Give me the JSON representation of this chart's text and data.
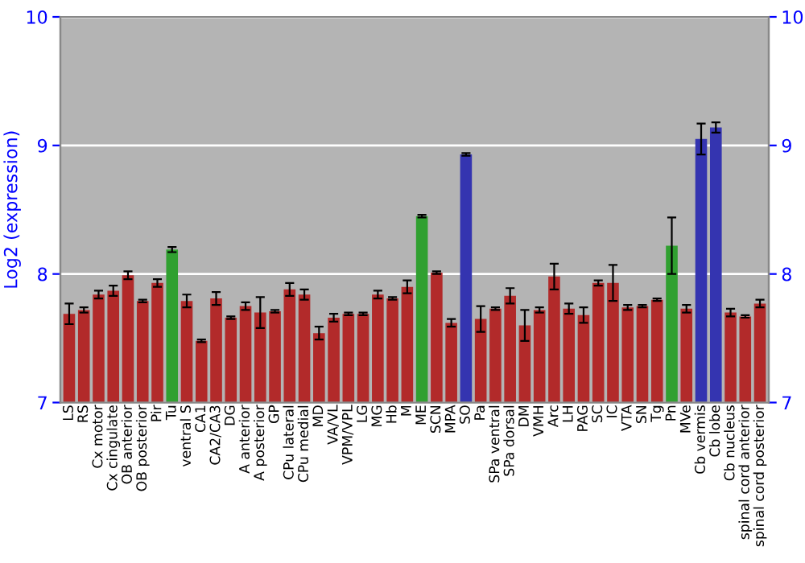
{
  "chart_data": {
    "type": "bar",
    "ylabel": "Log2 (expression)",
    "categories": [
      "LS",
      "RS",
      "Cx motor",
      "Cx cingulate",
      "OB anterior",
      "OB posterior",
      "Pir",
      "Tu",
      "ventral S",
      "CA1",
      "CA2/CA3",
      "DG",
      "A anterior",
      "A posterior",
      "GP",
      "CPu lateral",
      "CPu medial",
      "MD",
      "VA/VL",
      "VPM/VPL",
      "LG",
      "MG",
      "Hb",
      "M",
      "ME",
      "SCN",
      "MPA",
      "SO",
      "Pa",
      "SPa ventral",
      "SPa dorsal",
      "DM",
      "VMH",
      "Arc",
      "LH",
      "PAG",
      "SC",
      "IC",
      "VTA",
      "SN",
      "Tg",
      "Pn",
      "MVe",
      "Cb vermis",
      "Cb lobe",
      "Cb nucleus",
      "spinal cord anterior",
      "spinal cord posterior"
    ],
    "values": [
      7.69,
      7.72,
      7.84,
      7.87,
      7.99,
      7.79,
      7.93,
      8.19,
      7.79,
      7.48,
      7.81,
      7.66,
      7.75,
      7.7,
      7.71,
      7.88,
      7.84,
      7.54,
      7.66,
      7.69,
      7.69,
      7.84,
      7.81,
      7.9,
      8.45,
      8.01,
      7.62,
      8.93,
      7.65,
      7.73,
      7.83,
      7.6,
      7.72,
      7.98,
      7.73,
      7.68,
      7.93,
      7.93,
      7.74,
      7.75,
      7.8,
      8.22,
      7.73,
      9.05,
      9.14,
      7.7,
      7.67,
      7.77
    ],
    "errors": [
      0.08,
      0.02,
      0.03,
      0.04,
      0.03,
      0.01,
      0.03,
      0.02,
      0.05,
      0.01,
      0.05,
      0.01,
      0.03,
      0.12,
      0.01,
      0.05,
      0.04,
      0.05,
      0.03,
      0.01,
      0.01,
      0.03,
      0.01,
      0.05,
      0.01,
      0.01,
      0.03,
      0.01,
      0.1,
      0.01,
      0.06,
      0.12,
      0.02,
      0.1,
      0.04,
      0.06,
      0.02,
      0.14,
      0.02,
      0.01,
      0.01,
      0.22,
      0.03,
      0.12,
      0.04,
      0.03,
      0.01,
      0.03
    ],
    "colors": [
      "#b22a2a",
      "#b22a2a",
      "#b22a2a",
      "#b22a2a",
      "#b22a2a",
      "#b22a2a",
      "#b22a2a",
      "#30a030",
      "#b22a2a",
      "#b22a2a",
      "#b22a2a",
      "#b22a2a",
      "#b22a2a",
      "#b22a2a",
      "#b22a2a",
      "#b22a2a",
      "#b22a2a",
      "#b22a2a",
      "#b22a2a",
      "#b22a2a",
      "#b22a2a",
      "#b22a2a",
      "#b22a2a",
      "#b22a2a",
      "#30a030",
      "#b22a2a",
      "#b22a2a",
      "#3434b0",
      "#b22a2a",
      "#b22a2a",
      "#b22a2a",
      "#b22a2a",
      "#b22a2a",
      "#b22a2a",
      "#b22a2a",
      "#b22a2a",
      "#b22a2a",
      "#b22a2a",
      "#b22a2a",
      "#b22a2a",
      "#b22a2a",
      "#30a030",
      "#b22a2a",
      "#3434b0",
      "#3434b0",
      "#b22a2a",
      "#b22a2a",
      "#b22a2a"
    ],
    "ylim": [
      7,
      10
    ],
    "yticks": [
      7,
      8,
      9,
      10
    ],
    "y2lim": [
      7,
      10
    ],
    "y2ticks": [
      7,
      8,
      9,
      10
    ],
    "grid": "y"
  }
}
